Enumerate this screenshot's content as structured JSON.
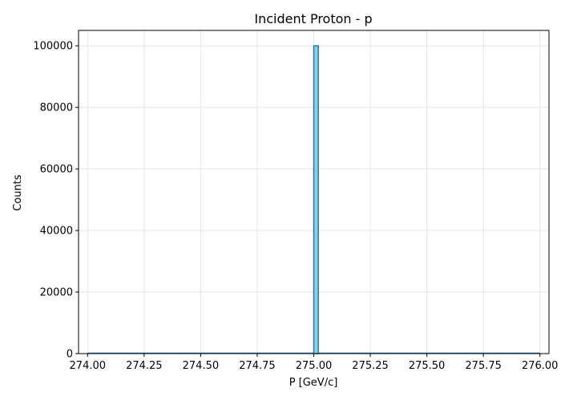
{
  "chart_data": {
    "type": "bar",
    "title": "Incident Proton - p",
    "xlabel": "P [GeV/c]",
    "ylabel": "Counts",
    "xlim": [
      273.96,
      276.04
    ],
    "ylim": [
      0,
      105000
    ],
    "grid": true,
    "x_ticks": [
      "274.00",
      "274.25",
      "274.50",
      "274.75",
      "275.00",
      "275.25",
      "275.50",
      "275.75",
      "276.00"
    ],
    "y_ticks": [
      "0",
      "20000",
      "40000",
      "60000",
      "80000",
      "100000"
    ],
    "x_tick_values": [
      274.0,
      274.25,
      274.5,
      274.75,
      275.0,
      275.25,
      275.5,
      275.75,
      276.0
    ],
    "y_tick_values": [
      0,
      20000,
      40000,
      60000,
      80000,
      100000
    ],
    "histogram": {
      "range": [
        274.0,
        276.0
      ],
      "bins": [
        {
          "x0": 275.0,
          "x1": 275.02,
          "count": 100000
        }
      ]
    },
    "colors": {
      "fill": "#8ecfe8",
      "edge": "#1f77b4",
      "grid": "#e6e6e6"
    }
  }
}
